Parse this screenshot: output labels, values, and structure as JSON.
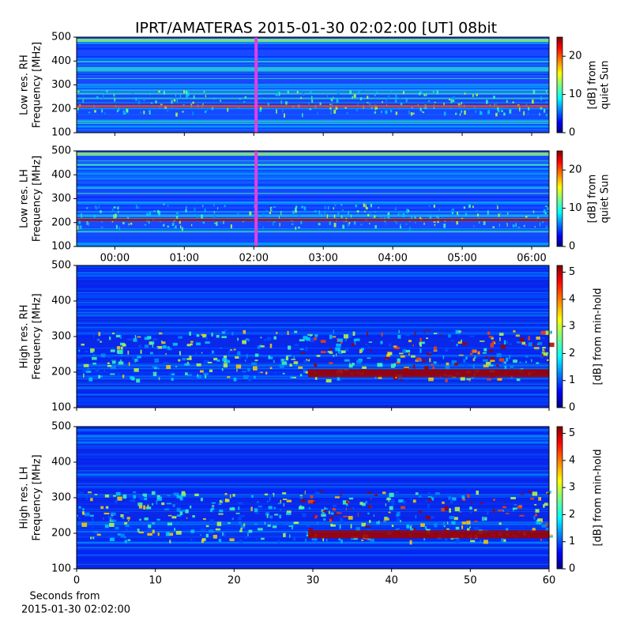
{
  "chart_data": [
    {
      "type": "heatmap",
      "title": "IPRT/AMATERAS 2015-01-30 02:02:00 [UT]   08bit",
      "ylabel": [
        "Low res. RH",
        "Frequency [MHz]"
      ],
      "ylim": [
        100,
        500
      ],
      "yticks": [
        100,
        200,
        300,
        400,
        500
      ],
      "xlim": [
        -33,
        375
      ],
      "xticks": [
        {
          "value": 0,
          "label": "00:00"
        },
        {
          "value": 60,
          "label": "01:00"
        },
        {
          "value": 120,
          "label": "02:00"
        },
        {
          "value": 180,
          "label": "03:00"
        },
        {
          "value": 240,
          "label": "04:00"
        },
        {
          "value": 300,
          "label": "05:00"
        },
        {
          "value": 360,
          "label": "06:00"
        }
      ],
      "xtick_labels": false,
      "marker_x": 122,
      "marker_color": "#e040e0",
      "colorbar": {
        "label": [
          "[dB] from",
          "quiet Sun"
        ],
        "lim": [
          0,
          25
        ],
        "ticks": [
          0,
          10,
          20
        ]
      }
    },
    {
      "type": "heatmap",
      "ylabel": [
        "Low res. LH",
        "Frequency [MHz]"
      ],
      "ylim": [
        100,
        500
      ],
      "yticks": [
        100,
        200,
        300,
        400,
        500
      ],
      "xlim": [
        -33,
        375
      ],
      "xticks": [
        {
          "value": 0,
          "label": "00:00"
        },
        {
          "value": 60,
          "label": "01:00"
        },
        {
          "value": 120,
          "label": "02:00"
        },
        {
          "value": 180,
          "label": "03:00"
        },
        {
          "value": 240,
          "label": "04:00"
        },
        {
          "value": 300,
          "label": "05:00"
        },
        {
          "value": 360,
          "label": "06:00"
        }
      ],
      "xtick_labels": true,
      "marker_x": 122,
      "marker_color": "#e040e0",
      "colorbar": {
        "label": [
          "[dB] from",
          "quiet Sun"
        ],
        "lim": [
          0,
          25
        ],
        "ticks": [
          0,
          10,
          20
        ]
      }
    },
    {
      "type": "heatmap",
      "ylabel": [
        "High res. RH",
        "Frequency [MHz]"
      ],
      "ylim": [
        100,
        500
      ],
      "yticks": [
        100,
        200,
        300,
        400,
        500
      ],
      "xlim": [
        0,
        60
      ],
      "xticks": [
        0,
        10,
        20,
        30,
        40,
        50,
        60
      ],
      "xtick_labels": false,
      "colorbar": {
        "label": [
          "[dB] from min-hold"
        ],
        "lim": [
          0,
          5.25
        ],
        "ticks": [
          0,
          1,
          2,
          3,
          4,
          5
        ]
      }
    },
    {
      "type": "heatmap",
      "ylabel": [
        "High res. LH",
        "Frequency [MHz]"
      ],
      "ylim": [
        100,
        500
      ],
      "yticks": [
        100,
        200,
        300,
        400,
        500
      ],
      "xlim": [
        0,
        60
      ],
      "xticks": [
        0,
        10,
        20,
        30,
        40,
        50,
        60
      ],
      "xtick_labels": true,
      "xlabel": [
        "Seconds from",
        "2015-01-30 02:02:00"
      ],
      "colorbar": {
        "label": [
          "[dB] from min-hold"
        ],
        "lim": [
          0,
          5.25
        ],
        "ticks": [
          0,
          1,
          2,
          3,
          4,
          5
        ]
      }
    }
  ]
}
